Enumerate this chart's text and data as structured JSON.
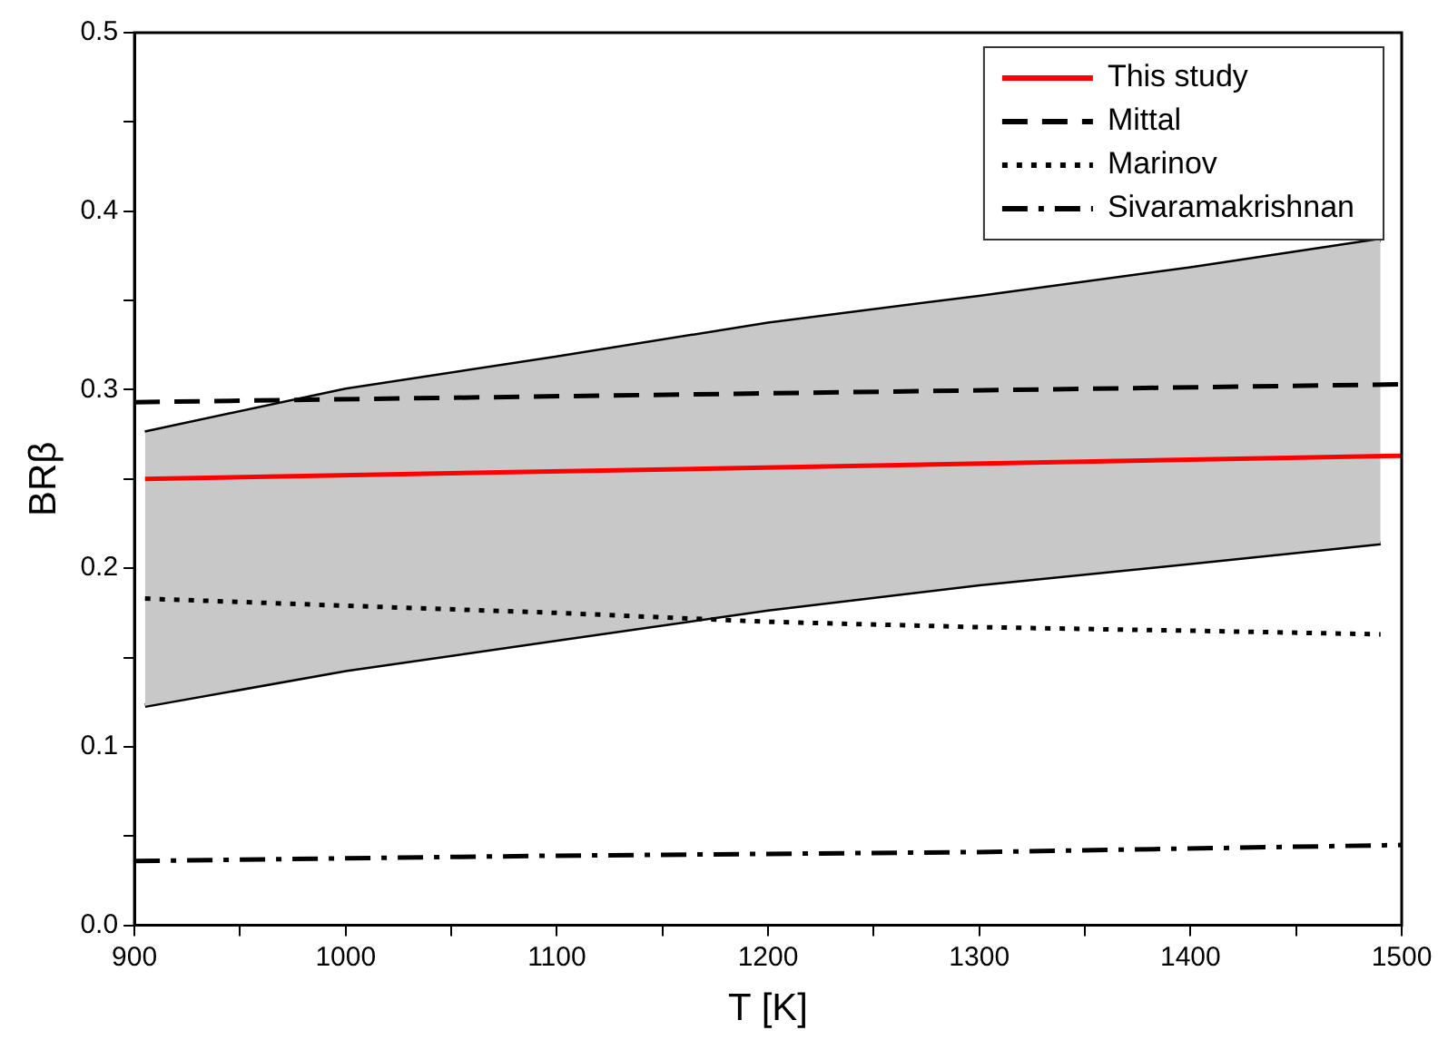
{
  "chart_data": {
    "type": "line",
    "xlabel": "T [K]",
    "ylabel": "BRβ",
    "xlim": [
      900,
      1500
    ],
    "ylim": [
      0,
      0.5
    ],
    "xticks": [
      900,
      {
        "value": 950,
        "label": null
      },
      1000,
      {
        "value": 1050,
        "label": null
      },
      1100,
      {
        "value": 1150,
        "label": null
      },
      1200,
      {
        "value": 1250,
        "label": null
      },
      1300,
      {
        "value": 1350,
        "label": null
      },
      1400,
      {
        "value": 1450,
        "label": null
      },
      1500
    ],
    "yticks": [
      {
        "value": 0,
        "label": "0.0"
      },
      {
        "value": 0.05,
        "label": null
      },
      0.1,
      {
        "value": 0.15,
        "label": null
      },
      0.2,
      {
        "value": 0.25,
        "label": null
      },
      0.3,
      {
        "value": 0.35,
        "label": null
      },
      0.4,
      {
        "value": 0.45,
        "label": null
      },
      0.5
    ],
    "grid": false,
    "legend": "top right",
    "marker": "none",
    "series": [
      {
        "name": "This study",
        "color": "#ff0000",
        "line_style": "solid",
        "x": [
          905,
          1500
        ],
        "values": [
          0.25,
          0.263
        ]
      },
      {
        "name": "Mittal",
        "color": "#000000",
        "line_style": "dashed",
        "x": [
          900,
          1500
        ],
        "values": [
          0.293,
          0.303
        ]
      },
      {
        "name": "Marinov",
        "color": "#000000",
        "line_style": "dotted",
        "x": [
          905,
          1000,
          1100,
          1200,
          1300,
          1400,
          1490
        ],
        "values": [
          0.183,
          0.179,
          0.175,
          0.17,
          0.167,
          0.165,
          0.163
        ]
      },
      {
        "name": "Sivaramakrishnan",
        "color": "#000000",
        "line_style": "dashdot",
        "x": [
          900,
          1100,
          1300,
          1500
        ],
        "values": [
          0.036,
          0.039,
          0.041,
          0.045
        ]
      },
      {
        "color": "#000000",
        "line_style": "solid",
        "x": [
          905,
          1000,
          1100,
          1200,
          1300,
          1400,
          1490
        ],
        "values": [
          0.276,
          0.3,
          0.318,
          0.337,
          0.352,
          0.368,
          0.384
        ],
        "lower": [
          0.123,
          0.143,
          0.16,
          0.177,
          0.191,
          0.203,
          0.214
        ],
        "upper": [
          0.276,
          0.3,
          0.318,
          0.337,
          0.352,
          0.368,
          0.384
        ]
      },
      {
        "color": "#000000",
        "line_style": "solid",
        "x": [
          905,
          1000,
          1100,
          1200,
          1300,
          1400,
          1490
        ],
        "values": [
          0.123,
          0.143,
          0.16,
          0.177,
          0.191,
          0.203,
          0.214
        ]
      }
    ]
  }
}
